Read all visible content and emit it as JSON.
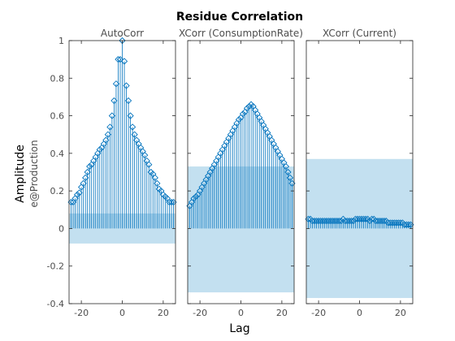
{
  "chart_data": {
    "type": "stem",
    "title": "Residue Correlation",
    "xlabel": "Lag",
    "ylabel": "Amplitude",
    "ylabel_sub": "e@Production",
    "ylim": [
      -0.4,
      1
    ],
    "xlim": [
      -26,
      26
    ],
    "yticks": [
      "1",
      "0.8",
      "0.6",
      "0.4",
      "0.2",
      "0",
      "-0.2",
      "-0.4"
    ],
    "xticks": [
      "-20",
      "0",
      "20"
    ],
    "colors": {
      "stem": "#0072bd",
      "band": "#c3e0f0",
      "axis": "#262626"
    },
    "panels": [
      {
        "name": "AutoCorr",
        "confidence_band": [
          -0.08,
          0.08
        ],
        "x": [
          -25,
          -24,
          -23,
          -22,
          -21,
          -20,
          -19,
          -18,
          -17,
          -16,
          -15,
          -14,
          -13,
          -12,
          -11,
          -10,
          -9,
          -8,
          -7,
          -6,
          -5,
          -4,
          -3,
          -2,
          -1,
          0,
          1,
          2,
          3,
          4,
          5,
          6,
          7,
          8,
          9,
          10,
          11,
          12,
          13,
          14,
          15,
          16,
          17,
          18,
          19,
          20,
          21,
          22,
          23,
          24,
          25
        ],
        "values": [
          0.14,
          0.14,
          0.16,
          0.18,
          0.19,
          0.22,
          0.24,
          0.27,
          0.3,
          0.33,
          0.34,
          0.36,
          0.38,
          0.4,
          0.42,
          0.43,
          0.45,
          0.47,
          0.5,
          0.54,
          0.6,
          0.68,
          0.77,
          0.9,
          0.9,
          1.0,
          0.89,
          0.76,
          0.68,
          0.6,
          0.54,
          0.5,
          0.47,
          0.45,
          0.43,
          0.41,
          0.39,
          0.36,
          0.34,
          0.3,
          0.29,
          0.27,
          0.24,
          0.21,
          0.2,
          0.18,
          0.17,
          0.16,
          0.14,
          0.14,
          0.14
        ]
      },
      {
        "name": "XCorr (ConsumptionRate)",
        "confidence_band": [
          -0.34,
          0.33
        ],
        "x": [
          -25,
          -24,
          -23,
          -22,
          -21,
          -20,
          -19,
          -18,
          -17,
          -16,
          -15,
          -14,
          -13,
          -12,
          -11,
          -10,
          -9,
          -8,
          -7,
          -6,
          -5,
          -4,
          -3,
          -2,
          -1,
          0,
          1,
          2,
          3,
          4,
          5,
          6,
          7,
          8,
          9,
          10,
          11,
          12,
          13,
          14,
          15,
          16,
          17,
          18,
          19,
          20,
          21,
          22,
          23,
          24,
          25
        ],
        "values": [
          0.12,
          0.14,
          0.16,
          0.17,
          0.18,
          0.2,
          0.22,
          0.24,
          0.26,
          0.28,
          0.3,
          0.32,
          0.34,
          0.36,
          0.38,
          0.4,
          0.42,
          0.44,
          0.46,
          0.48,
          0.5,
          0.52,
          0.54,
          0.56,
          0.58,
          0.59,
          0.61,
          0.62,
          0.64,
          0.65,
          0.66,
          0.65,
          0.63,
          0.61,
          0.59,
          0.57,
          0.55,
          0.53,
          0.51,
          0.49,
          0.47,
          0.45,
          0.43,
          0.41,
          0.39,
          0.37,
          0.35,
          0.33,
          0.3,
          0.27,
          0.24
        ]
      },
      {
        "name": "XCorr (Current)",
        "confidence_band": [
          -0.37,
          0.37
        ],
        "x": [
          -25,
          -24,
          -23,
          -22,
          -21,
          -20,
          -19,
          -18,
          -17,
          -16,
          -15,
          -14,
          -13,
          -12,
          -11,
          -10,
          -9,
          -8,
          -7,
          -6,
          -5,
          -4,
          -3,
          -2,
          -1,
          0,
          1,
          2,
          3,
          4,
          5,
          6,
          7,
          8,
          9,
          10,
          11,
          12,
          13,
          14,
          15,
          16,
          17,
          18,
          19,
          20,
          21,
          22,
          23,
          24,
          25
        ],
        "values": [
          0.05,
          0.05,
          0.04,
          0.04,
          0.04,
          0.04,
          0.04,
          0.04,
          0.04,
          0.04,
          0.04,
          0.04,
          0.04,
          0.04,
          0.04,
          0.04,
          0.04,
          0.05,
          0.04,
          0.04,
          0.04,
          0.04,
          0.04,
          0.05,
          0.05,
          0.05,
          0.05,
          0.05,
          0.05,
          0.05,
          0.04,
          0.05,
          0.05,
          0.04,
          0.04,
          0.04,
          0.04,
          0.04,
          0.04,
          0.03,
          0.03,
          0.03,
          0.03,
          0.03,
          0.03,
          0.03,
          0.03,
          0.02,
          0.02,
          0.02,
          0.02
        ]
      }
    ]
  }
}
